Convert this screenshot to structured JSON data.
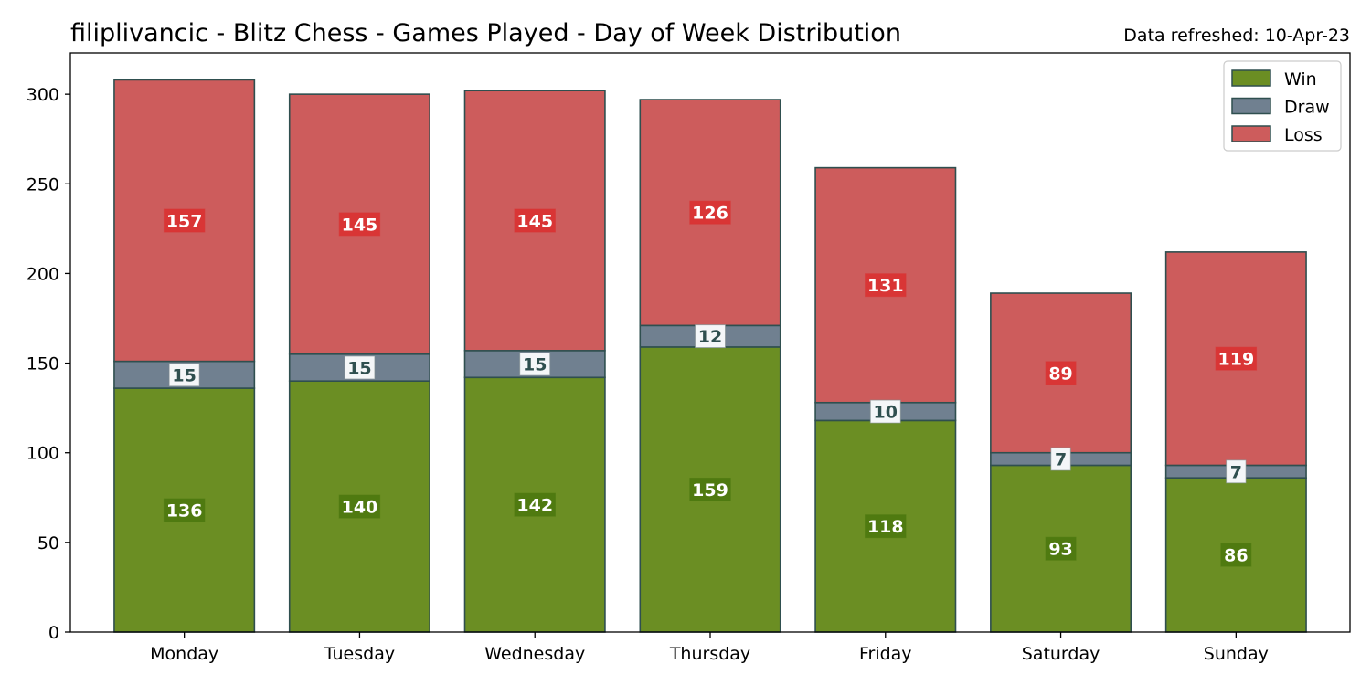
{
  "chart_data": {
    "type": "bar",
    "stacked": true,
    "title": "filiplivancic - Blitz Chess - Games Played - Day of Week Distribution",
    "subtitle": "Data refreshed: 10-Apr-23",
    "xlabel": "",
    "ylabel": "",
    "categories": [
      "Monday",
      "Tuesday",
      "Wednesday",
      "Thursday",
      "Friday",
      "Saturday",
      "Sunday"
    ],
    "series": [
      {
        "name": "Win",
        "values": [
          136,
          140,
          142,
          159,
          118,
          93,
          86
        ],
        "color": "#6b8e23",
        "label_box": "#4f7a10",
        "label_text": "#ffffff"
      },
      {
        "name": "Draw",
        "values": [
          15,
          15,
          15,
          12,
          10,
          7,
          7
        ],
        "color": "#708090",
        "label_box": "#f4f6f8",
        "label_text": "#2f4f4f"
      },
      {
        "name": "Loss",
        "values": [
          157,
          145,
          145,
          126,
          131,
          89,
          119
        ],
        "color": "#cd5c5c",
        "label_box": "#d93535",
        "label_text": "#ffffff"
      }
    ],
    "ylim": [
      0,
      323
    ],
    "yticks": [
      0,
      50,
      100,
      150,
      200,
      250,
      300
    ],
    "grid": false,
    "legend_position": "top-right",
    "edge_color": "#2f4f4f"
  }
}
